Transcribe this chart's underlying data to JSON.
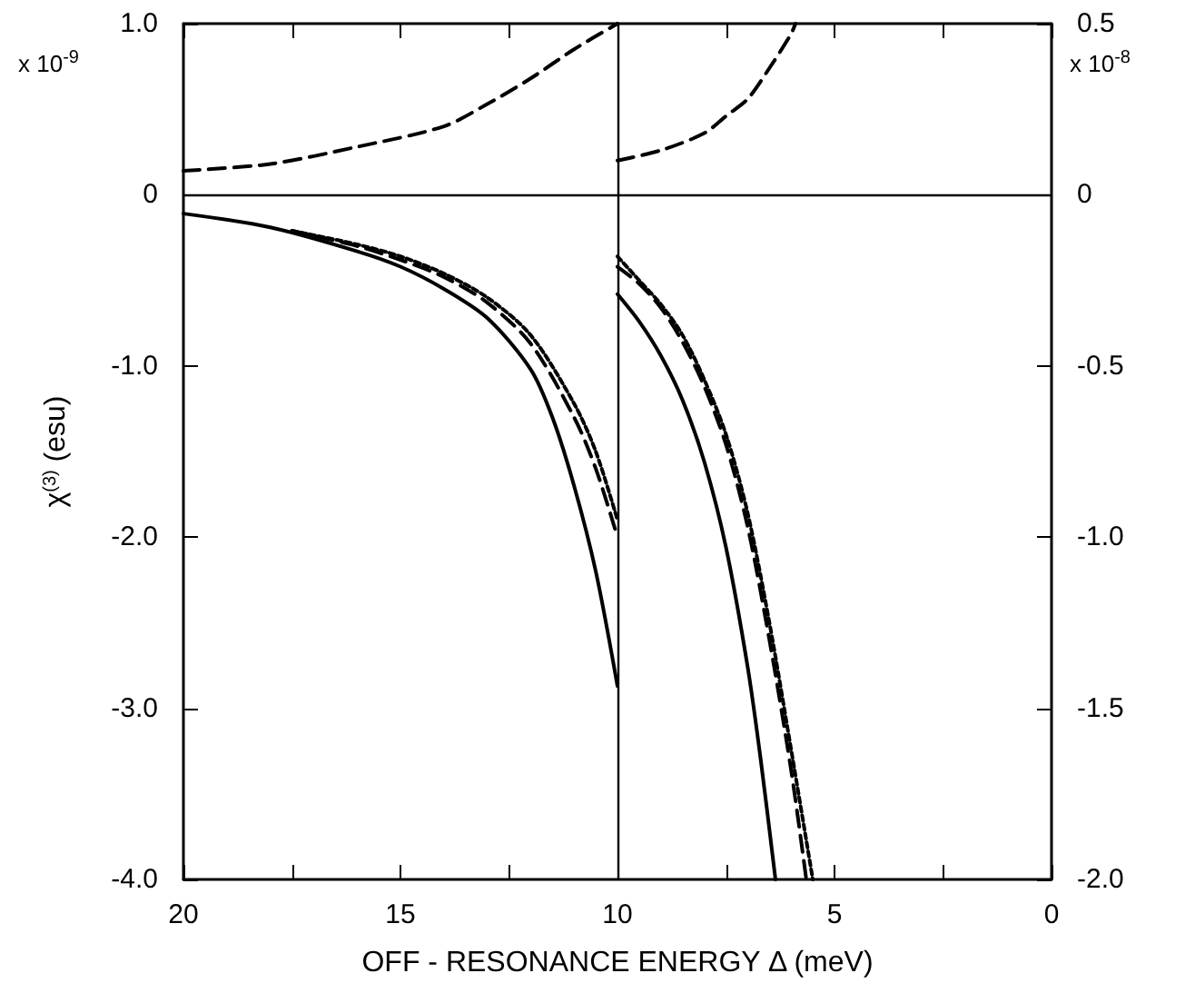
{
  "chart_data": {
    "type": "line",
    "xlabel": "OFF - RESONANCE ENERGY Δ (meV)",
    "ylabel": "χ$^{(3)}$ (esu)",
    "annotations": [
      "x 10$^{-9}$",
      "x 10$^{-8}$"
    ],
    "xlim": [
      20,
      0
    ],
    "xticks": [
      20,
      {
        "value": 17.5,
        "label": null
      },
      15,
      {
        "value": 12.5,
        "label": null
      },
      10,
      {
        "value": 7.5,
        "label": null
      },
      5,
      {
        "value": 2.5,
        "label": null
      },
      0
    ],
    "ylim": [
      -4,
      1
    ],
    "yticks": [
      {
        "value": -4,
        "label": "-4.0"
      },
      {
        "value": -3,
        "label": "-3.0"
      },
      {
        "value": -2,
        "label": "-2.0"
      },
      {
        "value": -1,
        "label": "-1.0"
      },
      0,
      {
        "value": 1,
        "label": "1.0"
      }
    ],
    "y2lim": [
      -2,
      0.5
    ],
    "y2ticks": [
      {
        "value": -2,
        "label": "-2.0"
      },
      -1.5,
      {
        "value": -1,
        "label": "-1.0"
      },
      -0.5,
      0,
      0.5
    ],
    "grid": false,
    "marker": "none",
    "ref_lines": [
      {
        "axis": "y",
        "value": 0,
        "color": "#000000"
      },
      {
        "axis": "x",
        "value": 10,
        "color": "#000000"
      }
    ],
    "series": [
      {
        "color": "#000000",
        "line_style": "dashed",
        "x": [
          20,
          18,
          16,
          14,
          13,
          12,
          11,
          10
        ],
        "values": [
          0.14,
          0.18,
          0.28,
          0.4,
          0.53,
          0.68,
          0.85,
          1.0
        ]
      },
      {
        "color": "#000000",
        "line_style": "solid",
        "x": [
          20,
          18,
          16,
          15,
          14,
          13,
          12,
          11.5,
          11,
          10.5,
          10
        ],
        "values": [
          -0.11,
          -0.19,
          -0.33,
          -0.42,
          -0.55,
          -0.72,
          -1.02,
          -1.3,
          -1.7,
          -2.2,
          -2.87
        ]
      },
      {
        "color": "#000000",
        "line_style": "dashed",
        "x": [
          17.5,
          16,
          15,
          14,
          13,
          12,
          11,
          10.5,
          10
        ],
        "values": [
          -0.21,
          -0.3,
          -0.38,
          -0.48,
          -0.63,
          -0.87,
          -1.3,
          -1.6,
          -2.0
        ]
      },
      {
        "color": "#000000",
        "line_style": "dotted",
        "x": [
          17.5,
          16,
          15,
          14,
          13,
          12,
          11,
          10.5,
          10
        ],
        "values": [
          -0.21,
          -0.29,
          -0.36,
          -0.46,
          -0.6,
          -0.82,
          -1.22,
          -1.5,
          -1.9
        ]
      },
      {
        "color": "#000000",
        "line_style": "dashed",
        "axis": "y2",
        "x": [
          10,
          9,
          8,
          7.5,
          7,
          6.5,
          6,
          5.9
        ],
        "values": [
          0.1,
          0.13,
          0.18,
          0.23,
          0.28,
          0.37,
          0.47,
          0.5
        ]
      },
      {
        "color": "#000000",
        "line_style": "solid",
        "axis": "y2",
        "x": [
          10,
          9.5,
          9,
          8.5,
          8,
          7.5,
          7,
          6.7,
          6.36
        ],
        "values": [
          -0.29,
          -0.37,
          -0.47,
          -0.6,
          -0.78,
          -1.03,
          -1.38,
          -1.65,
          -2.0
        ]
      },
      {
        "color": "#000000",
        "line_style": "dashed",
        "axis": "y2",
        "x": [
          10,
          9.5,
          9,
          8.5,
          8,
          7.5,
          7,
          6.5,
          6,
          5.65
        ],
        "values": [
          -0.21,
          -0.26,
          -0.33,
          -0.43,
          -0.56,
          -0.73,
          -0.97,
          -1.3,
          -1.68,
          -2.0
        ]
      },
      {
        "color": "#000000",
        "line_style": "dotted",
        "axis": "y2",
        "x": [
          10,
          9.5,
          9,
          8.5,
          8,
          7.5,
          7,
          6.5,
          6,
          5.5
        ],
        "values": [
          -0.18,
          -0.25,
          -0.32,
          -0.41,
          -0.54,
          -0.7,
          -0.93,
          -1.25,
          -1.62,
          -2.0
        ]
      }
    ]
  }
}
